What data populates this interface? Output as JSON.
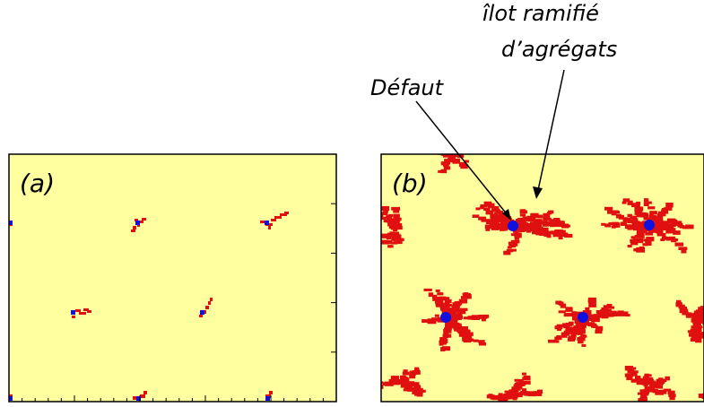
{
  "figure": {
    "background_color": "#ffffa0",
    "aggregate_color": "#e01010",
    "defect_color": "#1010e0",
    "panels": [
      {
        "id": "a",
        "label": "(a)"
      },
      {
        "id": "b",
        "label": "(b)"
      }
    ],
    "annotations": {
      "defect_label": "Défaut",
      "island_label_line1": "îlot ramifié",
      "island_label_line2": "d’agrégats"
    }
  }
}
